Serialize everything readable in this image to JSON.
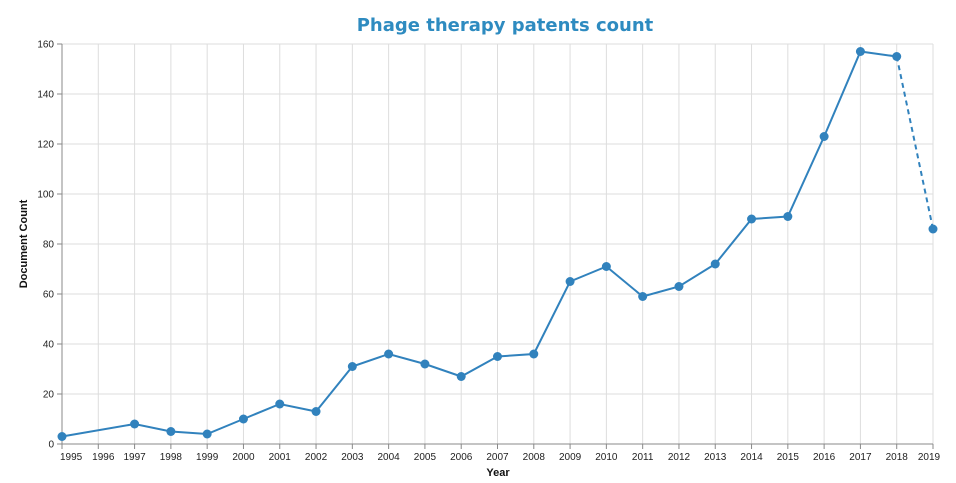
{
  "chart_data": {
    "type": "line",
    "title": "Phage therapy patents count",
    "xlabel": "Year",
    "ylabel": "Document Count",
    "x_ticks": [
      "1995",
      "1996",
      "1997",
      "1998",
      "1999",
      "2000",
      "2001",
      "2002",
      "2003",
      "2004",
      "2005",
      "2006",
      "2007",
      "2008",
      "2009",
      "2010",
      "2011",
      "2012",
      "2013",
      "2014",
      "2015",
      "2016",
      "2017",
      "2018",
      "2019"
    ],
    "y_ticks": [
      "0",
      "20",
      "40",
      "60",
      "80",
      "100",
      "120",
      "140",
      "160"
    ],
    "ylim": [
      0,
      160
    ],
    "xlim": [
      1995,
      2019
    ],
    "grid": true,
    "series": [
      {
        "color": "#3182bd",
        "points": [
          {
            "x": 1995,
            "y": 3
          },
          {
            "x": 1997,
            "y": 8
          },
          {
            "x": 1998,
            "y": 5
          },
          {
            "x": 1999,
            "y": 4
          },
          {
            "x": 2000,
            "y": 10
          },
          {
            "x": 2001,
            "y": 16
          },
          {
            "x": 2002,
            "y": 13
          },
          {
            "x": 2003,
            "y": 31
          },
          {
            "x": 2004,
            "y": 36
          },
          {
            "x": 2005,
            "y": 32
          },
          {
            "x": 2006,
            "y": 27
          },
          {
            "x": 2007,
            "y": 35
          },
          {
            "x": 2008,
            "y": 36
          },
          {
            "x": 2009,
            "y": 65
          },
          {
            "x": 2010,
            "y": 71
          },
          {
            "x": 2011,
            "y": 59
          },
          {
            "x": 2012,
            "y": 63
          },
          {
            "x": 2013,
            "y": 72
          },
          {
            "x": 2014,
            "y": 90
          },
          {
            "x": 2015,
            "y": 91
          },
          {
            "x": 2016,
            "y": 123
          },
          {
            "x": 2017,
            "y": 157
          },
          {
            "x": 2018,
            "y": 155
          },
          {
            "x": 2019,
            "y": 86
          }
        ],
        "dashed_from": 2018
      }
    ]
  }
}
